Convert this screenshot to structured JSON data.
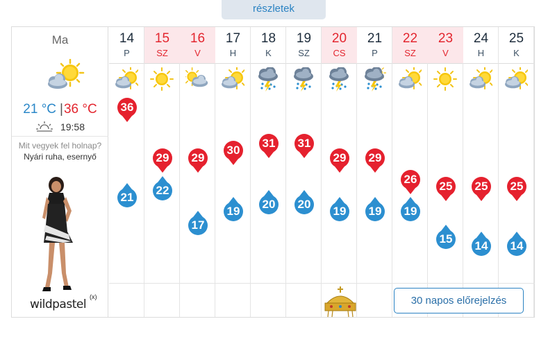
{
  "details_label": "részletek",
  "today": {
    "title": "Ma",
    "icon": "partly-sunny-icon",
    "min_temp": "21 °C",
    "separator": "|",
    "max_temp": "36 °C",
    "sunset_icon": "sunset-icon",
    "sunset_time": "19:58",
    "question": "Mit vegyek fel holnap?",
    "answer": "Nyári ruha, esernyő",
    "brand": "wildpastel",
    "brand_mark": "(x)"
  },
  "days": [
    {
      "num": "14",
      "name": "P",
      "weekend": false,
      "icon": "partly-sunny-icon",
      "max": "36",
      "min": "21"
    },
    {
      "num": "15",
      "name": "SZ",
      "weekend": true,
      "icon": "sunny-icon",
      "max": "29",
      "min": "22"
    },
    {
      "num": "16",
      "name": "V",
      "weekend": true,
      "icon": "sun-cloud-icon",
      "max": "29",
      "min": "17"
    },
    {
      "num": "17",
      "name": "H",
      "weekend": false,
      "icon": "partly-sunny-icon",
      "max": "30",
      "min": "19"
    },
    {
      "num": "18",
      "name": "K",
      "weekend": false,
      "icon": "thunderstorm-icon",
      "max": "31",
      "min": "20"
    },
    {
      "num": "19",
      "name": "SZ",
      "weekend": false,
      "icon": "thunderstorm-icon",
      "max": "31",
      "min": "20"
    },
    {
      "num": "20",
      "name": "CS",
      "weekend": true,
      "icon": "thunderstorm-icon",
      "max": "29",
      "min": "19"
    },
    {
      "num": "21",
      "name": "P",
      "weekend": false,
      "icon": "sun-thunderstorm-icon",
      "max": "29",
      "min": "19"
    },
    {
      "num": "22",
      "name": "SZ",
      "weekend": true,
      "icon": "partly-sunny-icon",
      "max": "26",
      "min": "19"
    },
    {
      "num": "23",
      "name": "V",
      "weekend": true,
      "icon": "sunny-icon",
      "max": "25",
      "min": "15"
    },
    {
      "num": "24",
      "name": "H",
      "weekend": false,
      "icon": "partly-sunny-icon",
      "max": "25",
      "min": "14"
    },
    {
      "num": "25",
      "name": "K",
      "weekend": false,
      "icon": "partly-sunny-icon",
      "max": "25",
      "min": "14"
    }
  ],
  "forecast_button": "30 napos előrejelzés",
  "colors": {
    "max": "#e5212e",
    "min": "#2c8fd0",
    "weekend_bg": "#fce7ea",
    "link": "#2a82c2"
  }
}
